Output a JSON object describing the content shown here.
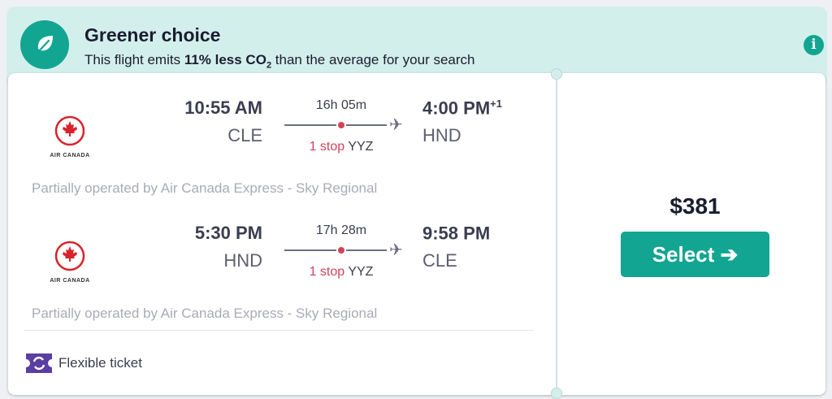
{
  "banner": {
    "title": "Greener choice",
    "sub_prefix": "This flight emits ",
    "sub_bold": "11% less CO",
    "sub_sub": "2",
    "sub_suffix": " than the average for your search",
    "icon": "leaf-icon",
    "info_icon": "i"
  },
  "legs": [
    {
      "airline": "AIR CANADA",
      "depart_time": "10:55 AM",
      "depart_code": "CLE",
      "duration": "16h 05m",
      "stops": "1 stop",
      "stop_code": "YYZ",
      "arrive_time": "4:00 PM",
      "arrive_offset": "+1",
      "arrive_code": "HND",
      "operated": "Partially operated by Air Canada Express - Sky Regional"
    },
    {
      "airline": "AIR CANADA",
      "depart_time": "5:30 PM",
      "depart_code": "HND",
      "duration": "17h 28m",
      "stops": "1 stop",
      "stop_code": "YYZ",
      "arrive_time": "9:58 PM",
      "arrive_offset": "",
      "arrive_code": "CLE",
      "operated": "Partially operated by Air Canada Express - Sky Regional"
    }
  ],
  "flexible": "Flexible ticket",
  "price": "$381",
  "select_label": "Select ➔",
  "colors": {
    "accent": "#12a592",
    "banner": "#d3efec",
    "stop": "#d1435b",
    "flex_icon": "#5a3ea3"
  }
}
